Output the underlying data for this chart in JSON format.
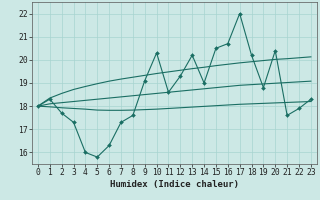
{
  "x": [
    0,
    1,
    2,
    3,
    4,
    5,
    6,
    7,
    8,
    9,
    10,
    11,
    12,
    13,
    14,
    15,
    16,
    17,
    18,
    19,
    20,
    21,
    22,
    23
  ],
  "line_main": [
    18.0,
    18.3,
    17.7,
    17.3,
    16.0,
    15.8,
    16.3,
    17.3,
    17.6,
    19.1,
    20.3,
    18.6,
    19.3,
    20.2,
    19.0,
    20.5,
    20.7,
    22.0,
    20.2,
    18.8,
    20.4,
    17.6,
    17.9,
    18.3
  ],
  "line_upper": [
    18.0,
    18.35,
    18.55,
    18.72,
    18.85,
    18.97,
    19.08,
    19.17,
    19.25,
    19.33,
    19.41,
    19.48,
    19.55,
    19.62,
    19.68,
    19.75,
    19.81,
    19.87,
    19.92,
    19.97,
    20.02,
    20.05,
    20.09,
    20.13
  ],
  "line_mid_upper": [
    18.0,
    18.1,
    18.15,
    18.2,
    18.25,
    18.3,
    18.35,
    18.4,
    18.45,
    18.5,
    18.55,
    18.6,
    18.65,
    18.7,
    18.75,
    18.8,
    18.85,
    18.9,
    18.93,
    18.96,
    18.99,
    19.02,
    19.05,
    19.08
  ],
  "line_lower": [
    18.0,
    17.97,
    17.93,
    17.9,
    17.87,
    17.83,
    17.82,
    17.82,
    17.83,
    17.85,
    17.87,
    17.9,
    17.93,
    17.96,
    17.99,
    18.02,
    18.05,
    18.08,
    18.1,
    18.12,
    18.14,
    18.16,
    18.18,
    18.2
  ],
  "bg_color": "#cce8e5",
  "grid_color": "#a8d4d0",
  "line_color": "#1a6e63",
  "xlabel": "Humidex (Indice chaleur)",
  "ylim": [
    15.5,
    22.5
  ],
  "yticks": [
    16,
    17,
    18,
    19,
    20,
    21,
    22
  ],
  "xticks": [
    0,
    1,
    2,
    3,
    4,
    5,
    6,
    7,
    8,
    9,
    10,
    11,
    12,
    13,
    14,
    15,
    16,
    17,
    18,
    19,
    20,
    21,
    22,
    23
  ],
  "xlabel_fontsize": 6.5,
  "tick_fontsize": 5.8,
  "marker_size": 2.0,
  "line_width": 0.8
}
